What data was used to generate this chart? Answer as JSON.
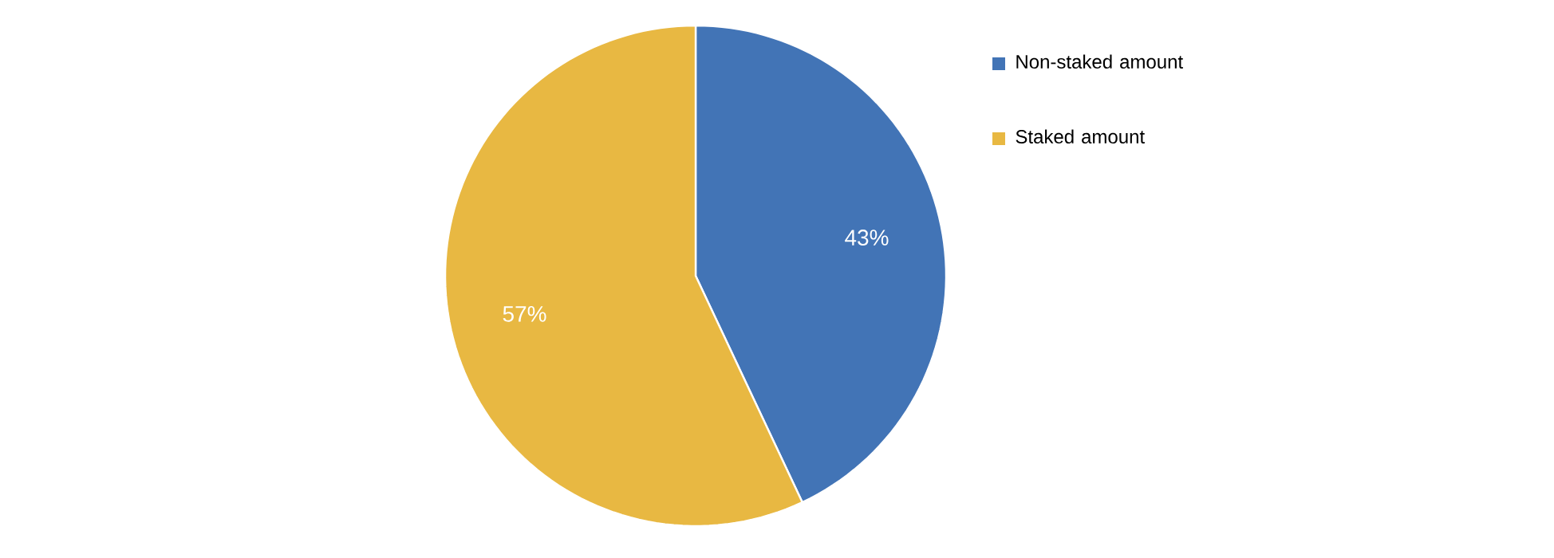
{
  "chart_data": {
    "type": "pie",
    "categories": [
      "Non-staked amount",
      "Staked amount"
    ],
    "values": [
      43,
      57
    ],
    "colors": [
      "#4274b6",
      "#e8b842"
    ],
    "value_labels": [
      "43%",
      "57%"
    ],
    "legend": "right"
  }
}
